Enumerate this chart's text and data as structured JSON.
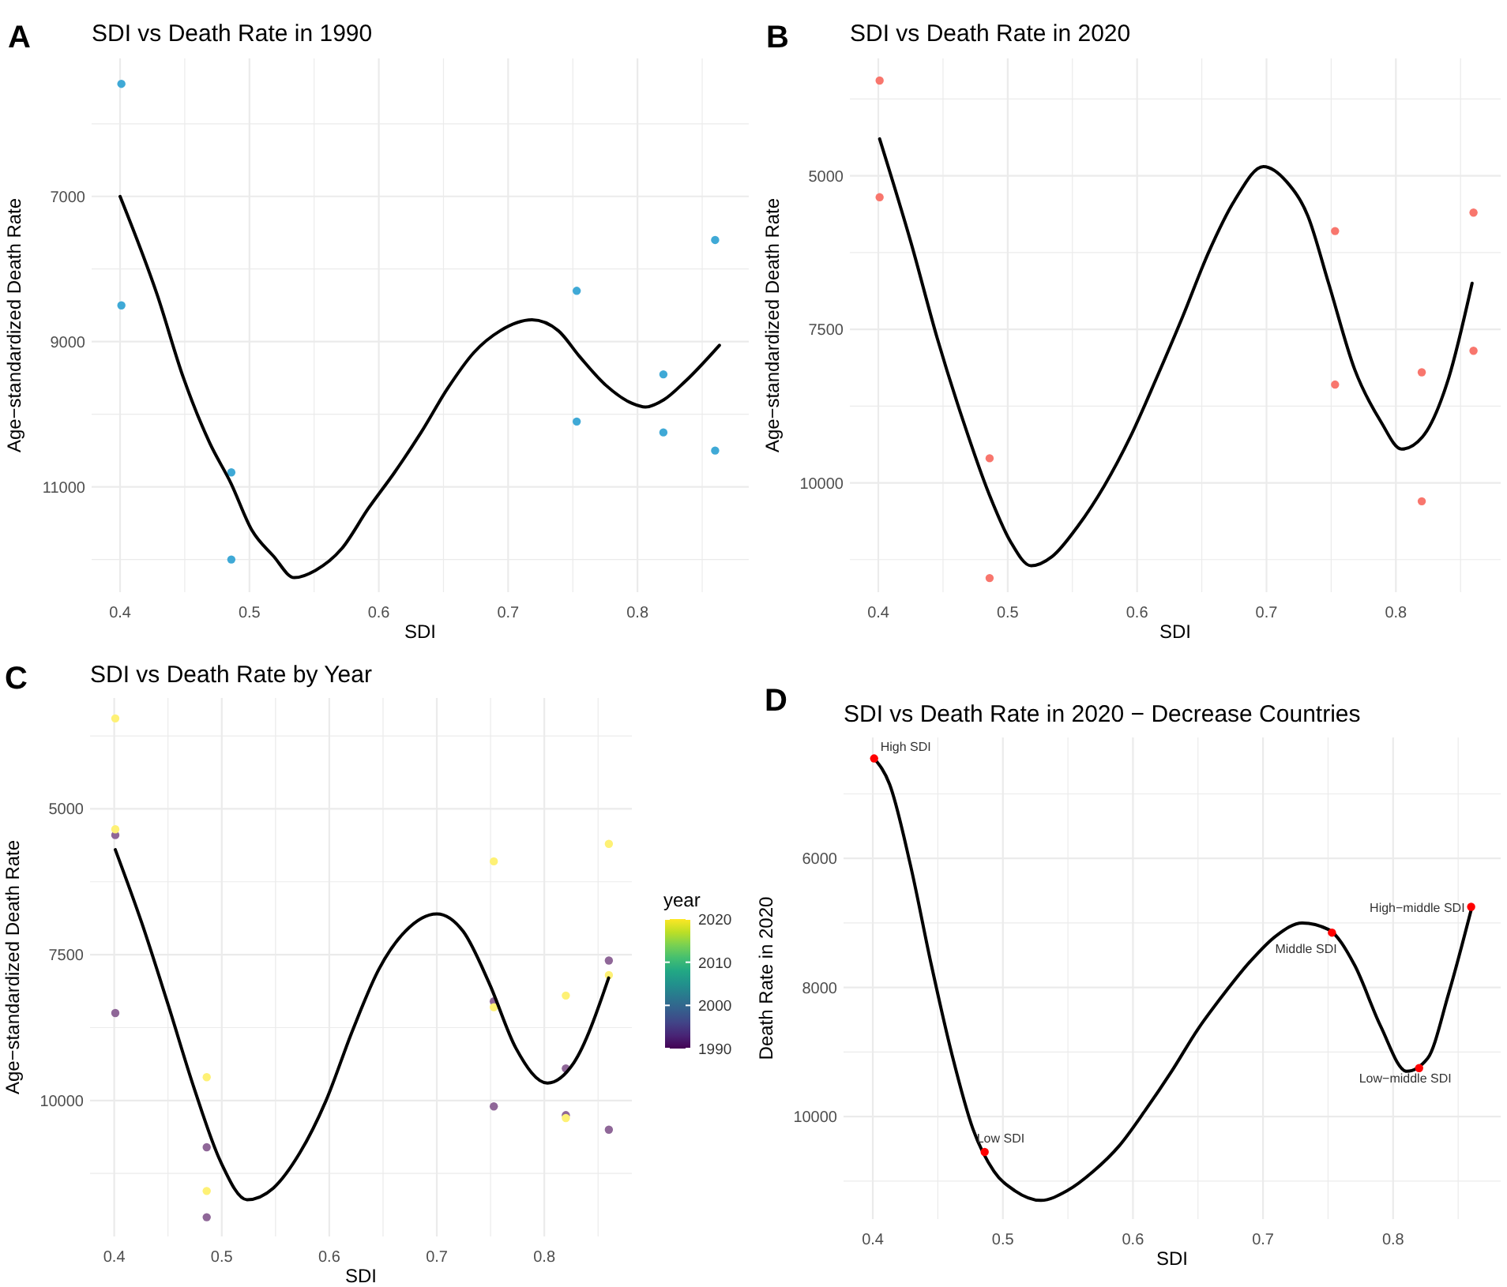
{
  "chart_data": [
    {
      "type": "scatter",
      "title": "SDI vs Death Rate in 1990",
      "xlabel": "SDI",
      "ylabel": "Age−standardized Death Rate",
      "annotations": [
        "A"
      ],
      "grid": true,
      "xlim": [
        0.378,
        0.886
      ],
      "xticks": [
        0.4,
        {
          "value": 0.45,
          "label": null
        },
        0.5,
        {
          "value": 0.55,
          "label": null
        },
        0.6,
        {
          "value": 0.65,
          "label": null
        },
        0.7,
        {
          "value": 0.75,
          "label": null
        },
        0.8,
        {
          "value": 0.85,
          "label": null
        }
      ],
      "ylim": [
        12450,
        5100
      ],
      "yticks": [
        {
          "value": 6000,
          "label": null
        },
        7000,
        {
          "value": 8000,
          "label": null
        },
        9000,
        {
          "value": 10000,
          "label": null
        },
        11000,
        {
          "value": 12000,
          "label": null
        }
      ],
      "series": [
        {
          "type": "scatter",
          "color": "#3fa9d6",
          "x": [
            0.401,
            0.401,
            0.486,
            0.486,
            0.753,
            0.753,
            0.82,
            0.82,
            0.86,
            0.86
          ],
          "values": [
            5450,
            8500,
            10800,
            12000,
            8300,
            10100,
            9450,
            10250,
            7600,
            10500
          ]
        },
        {
          "type": "line",
          "color": "#000000",
          "x": [
            0.4,
            0.4286,
            0.449,
            0.4694,
            0.4857,
            0.502,
            0.5184,
            0.5347,
            0.551,
            0.5714,
            0.5918,
            0.6122,
            0.6327,
            0.653,
            0.6735,
            0.6939,
            0.7184,
            0.7388,
            0.755,
            0.7755,
            0.7959,
            0.8061,
            0.8204,
            0.8367,
            0.8633
          ],
          "values": [
            7000,
            8350,
            9500,
            10400,
            10950,
            11600,
            11950,
            12250,
            12150,
            11850,
            11300,
            10800,
            10250,
            9650,
            9150,
            8850,
            8700,
            8850,
            9200,
            9600,
            9850,
            9900,
            9800,
            9550,
            9050
          ]
        }
      ]
    },
    {
      "type": "scatter",
      "title": "SDI vs Death Rate in 2020",
      "xlabel": "SDI",
      "ylabel": "Age−standardized Death Rate",
      "annotations": [
        "B"
      ],
      "grid": true,
      "xlim": [
        0.378,
        0.881
      ],
      "xticks": [
        0.4,
        {
          "value": 0.45,
          "label": null
        },
        0.5,
        {
          "value": 0.55,
          "label": null
        },
        0.6,
        {
          "value": 0.65,
          "label": null
        },
        0.7,
        {
          "value": 0.75,
          "label": null
        },
        0.8,
        {
          "value": 0.85,
          "label": null
        }
      ],
      "ylim": [
        11780,
        3090
      ],
      "yticks": [
        {
          "value": 3750,
          "label": null
        },
        5000,
        {
          "value": 6250,
          "label": null
        },
        7500,
        {
          "value": 8750,
          "label": null
        },
        10000,
        {
          "value": 11250,
          "label": null
        }
      ],
      "series": [
        {
          "type": "scatter",
          "color": "#f8766d",
          "x": [
            0.401,
            0.401,
            0.486,
            0.486,
            0.753,
            0.753,
            0.82,
            0.82,
            0.86,
            0.86
          ],
          "values": [
            3450,
            5350,
            9600,
            11550,
            5900,
            8400,
            8200,
            10300,
            5600,
            7850
          ]
        },
        {
          "type": "line",
          "color": "#000000",
          "x": [
            0.401,
            0.4254,
            0.4456,
            0.4657,
            0.4859,
            0.502,
            0.5181,
            0.5343,
            0.5544,
            0.5746,
            0.5948,
            0.6149,
            0.6351,
            0.6552,
            0.6754,
            0.6976,
            0.7157,
            0.7319,
            0.748,
            0.7681,
            0.7883,
            0.8044,
            0.8206,
            0.8407,
            0.8589
          ],
          "values": [
            4400,
            6100,
            7650,
            9000,
            10200,
            10950,
            11350,
            11200,
            10700,
            10050,
            9250,
            8300,
            7300,
            6250,
            5400,
            4850,
            5100,
            5650,
            6750,
            8150,
            9000,
            9450,
            9250,
            8300,
            6750
          ]
        }
      ]
    },
    {
      "type": "scatter",
      "title": "SDI vs Death Rate by Year",
      "xlabel": "SDI",
      "ylabel": "Age−standardized Death Rate",
      "annotations": [
        "C"
      ],
      "grid": true,
      "clabel": "year",
      "clim": [
        1990,
        2020
      ],
      "cticks": [
        1990,
        2000,
        2010,
        2020
      ],
      "xlim": [
        0.3775,
        0.8814
      ],
      "xticks": [
        0.4,
        {
          "value": 0.45,
          "label": null
        },
        0.5,
        {
          "value": 0.55,
          "label": null
        },
        0.6,
        {
          "value": 0.65,
          "label": null
        },
        0.7,
        {
          "value": 0.75,
          "label": null
        },
        0.8,
        {
          "value": 0.85,
          "label": null
        }
      ],
      "ylim": [
        12330,
        3100
      ],
      "yticks": [
        {
          "value": 3750,
          "label": null
        },
        5000,
        {
          "value": 6250,
          "label": null
        },
        7500,
        {
          "value": 8750,
          "label": null
        },
        10000,
        {
          "value": 11250,
          "label": null
        }
      ],
      "series": [
        {
          "type": "scatter",
          "x": [
            0.401,
            0.401,
            0.486,
            0.486,
            0.753,
            0.753,
            0.82,
            0.82,
            0.86,
            0.86,
            0.401,
            0.401,
            0.486,
            0.486,
            0.753,
            0.753,
            0.82,
            0.82,
            0.86,
            0.86
          ],
          "values": [
            5450,
            8500,
            10800,
            12000,
            8300,
            10100,
            9450,
            10250,
            7600,
            10500,
            3450,
            5350,
            9600,
            11550,
            5900,
            8400,
            8200,
            10300,
            5600,
            7850
          ],
          "colors": [
            "#8f6798",
            "#8f6798",
            "#8f6798",
            "#8f6798",
            "#8f6798",
            "#8f6798",
            "#8f6798",
            "#8f6798",
            "#8f6798",
            "#8f6798",
            "#fef175",
            "#fef175",
            "#fef175",
            "#fef175",
            "#fef175",
            "#fef175",
            "#fef175",
            "#fef175",
            "#fef175",
            "#fef175"
          ]
        },
        {
          "type": "line",
          "color": "#000000",
          "x": [
            0.401,
            0.4255,
            0.45,
            0.4745,
            0.499,
            0.5235,
            0.548,
            0.5725,
            0.597,
            0.6216,
            0.6461,
            0.6706,
            0.7,
            0.7245,
            0.749,
            0.7735,
            0.8029,
            0.8275,
            0.8598
          ],
          "values": [
            5700,
            6950,
            8350,
            9800,
            11050,
            11700,
            11500,
            10900,
            10000,
            8800,
            7750,
            7100,
            6800,
            7100,
            8000,
            9100,
            9700,
            9350,
            7900
          ]
        }
      ]
    },
    {
      "type": "scatter",
      "title": "SDI vs Death Rate in 2020 − Decrease Countries",
      "xlabel": "SDI",
      "ylabel": "Death Rate in 2020",
      "grid": true,
      "annotations": [
        "D",
        {
          "text": "High SDI",
          "x": 0.401,
          "y": 4450
        },
        {
          "text": "Low SDI",
          "x": 0.486,
          "y": 10550
        },
        {
          "text": "Middle SDI",
          "x": 0.753,
          "y": 7150
        },
        {
          "text": "Low−middle SDI",
          "x": 0.82,
          "y": 9250
        },
        {
          "text": "High−middle SDI",
          "x": 0.86,
          "y": 6750
        }
      ],
      "xlim": [
        0.3775,
        0.8827
      ],
      "xticks": [
        0.4,
        {
          "value": 0.45,
          "label": null
        },
        0.5,
        {
          "value": 0.55,
          "label": null
        },
        0.6,
        {
          "value": 0.65,
          "label": null
        },
        0.7,
        {
          "value": 0.75,
          "label": null
        },
        0.8,
        {
          "value": 0.85,
          "label": null
        }
      ],
      "ylim": [
        11590,
        4125
      ],
      "yticks": [
        {
          "value": 5000,
          "label": null
        },
        6000,
        {
          "value": 7000,
          "label": null
        },
        8000,
        {
          "value": 9000,
          "label": null
        },
        10000,
        {
          "value": 11000,
          "label": null
        }
      ],
      "series": [
        {
          "type": "line",
          "color": "#000000",
          "x": [
            0.401,
            0.4129,
            0.4289,
            0.445,
            0.461,
            0.4771,
            0.4932,
            0.5092,
            0.5293,
            0.5494,
            0.5695,
            0.5896,
            0.6096,
            0.6297,
            0.6498,
            0.6699,
            0.69,
            0.71,
            0.7301,
            0.7502,
            0.7703,
            0.7904,
            0.8104,
            0.8265,
            0.8426,
            0.8606
          ],
          "values": [
            4450,
            4850,
            6100,
            7650,
            9050,
            10200,
            10850,
            11150,
            11300,
            11150,
            10850,
            10450,
            9900,
            9300,
            8650,
            8100,
            7600,
            7200,
            7000,
            7100,
            7650,
            8600,
            9300,
            9100,
            8100,
            6750
          ]
        },
        {
          "type": "scatter",
          "color": "#ff0000",
          "x": [
            0.401,
            0.486,
            0.753,
            0.82,
            0.86
          ],
          "values": [
            4450,
            10550,
            7150,
            9250,
            6750
          ]
        }
      ]
    }
  ]
}
